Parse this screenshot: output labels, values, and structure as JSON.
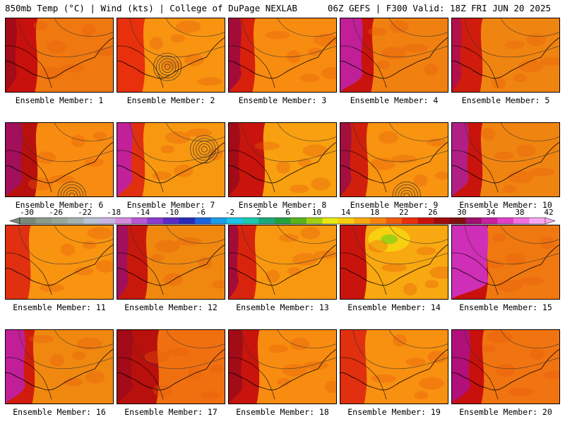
{
  "header": {
    "left": "850mb Temp (°C) | Wind (kts) | College of DuPage NEXLAB",
    "right": "06Z GEFS | F300 Valid: 18Z FRI JUN 20 2025"
  },
  "colorbar": {
    "ticks": [
      "-30",
      "-26",
      "-22",
      "-18",
      "-14",
      "-10",
      "-6",
      "-2",
      "2",
      "6",
      "10",
      "14",
      "18",
      "22",
      "26",
      "30",
      "34",
      "38",
      "42"
    ],
    "colors": [
      "#7a8a7a",
      "#8c9a8c",
      "#9aa69a",
      "#a6b2b0",
      "#b8c4d4",
      "#c8b4e4",
      "#d48cdc",
      "#b858d4",
      "#8a3ccc",
      "#5a2cc4",
      "#2a2ab8",
      "#1c64dc",
      "#1c9ce8",
      "#1cc4e8",
      "#1cc8b0",
      "#1ca87c",
      "#24a040",
      "#58b41c",
      "#a0d014",
      "#e8e814",
      "#f8cc10",
      "#f8a810",
      "#f88410",
      "#f05c0c",
      "#e8300c",
      "#c8140c",
      "#a00c0c",
      "#801010",
      "#a0106c",
      "#c820a0",
      "#e040c8",
      "#f070e0",
      "#f8a8f0"
    ]
  },
  "members": [
    {
      "label": "Ensemble Member: 1"
    },
    {
      "label": "Ensemble Member: 2"
    },
    {
      "label": "Ensemble Member: 3"
    },
    {
      "label": "Ensemble Member: 4"
    },
    {
      "label": "Ensemble Member: 5"
    },
    {
      "label": "Ensemble Member: 6"
    },
    {
      "label": "Ensemble Member: 7"
    },
    {
      "label": "Ensemble Member: 8"
    },
    {
      "label": "Ensemble Member: 9"
    },
    {
      "label": "Ensemble Member: 10"
    },
    {
      "label": "Ensemble Member: 11"
    },
    {
      "label": "Ensemble Member: 12"
    },
    {
      "label": "Ensemble Member: 13"
    },
    {
      "label": "Ensemble Member: 14"
    },
    {
      "label": "Ensemble Member: 15"
    },
    {
      "label": "Ensemble Member: 16"
    },
    {
      "label": "Ensemble Member: 17"
    },
    {
      "label": "Ensemble Member: 18"
    },
    {
      "label": "Ensemble Member: 19"
    },
    {
      "label": "Ensemble Member: 20"
    }
  ]
}
